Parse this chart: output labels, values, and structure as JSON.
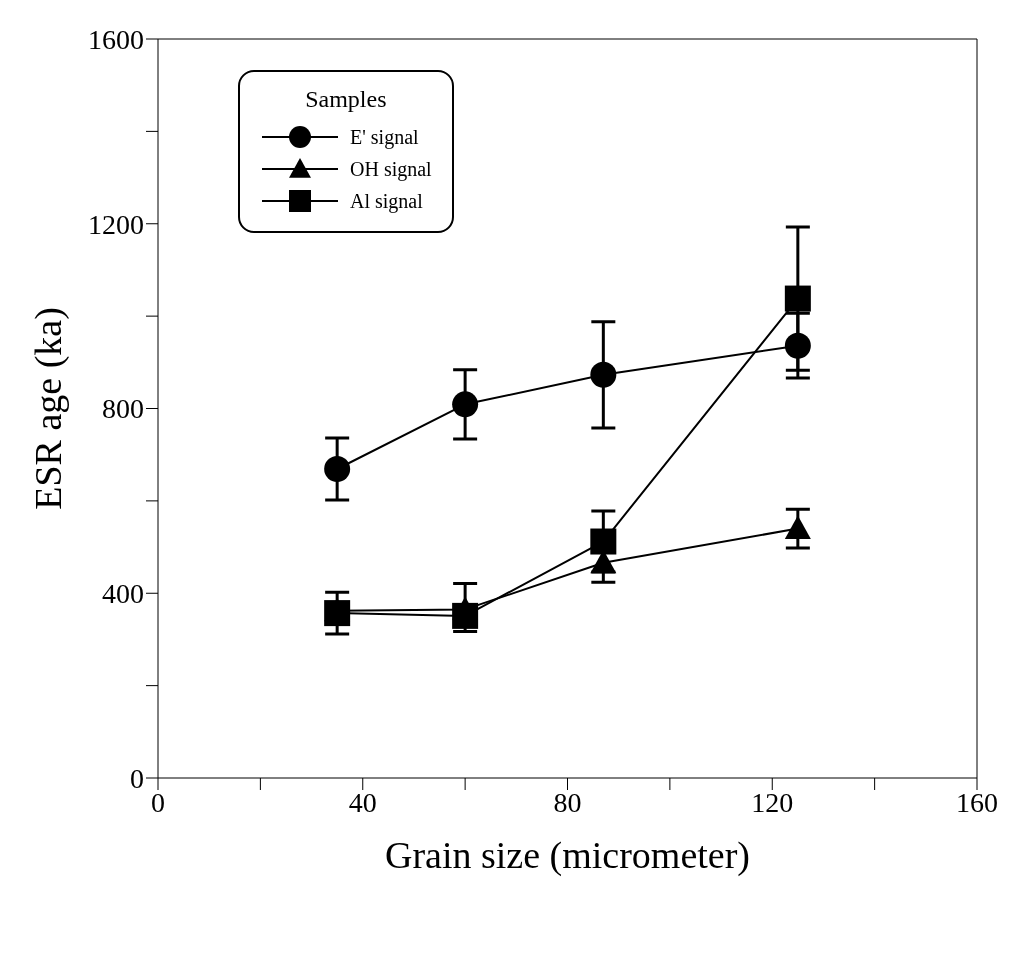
{
  "chart_data": {
    "type": "line",
    "xlabel": "Grain size (micrometer)",
    "ylabel": "ESR age (ka)",
    "legend_title": "Samples",
    "legend": "top left",
    "grid": false,
    "xlim": [
      0,
      160
    ],
    "xticks": [
      0,
      {
        "value": 20,
        "label": null
      },
      40,
      {
        "value": 60,
        "label": null
      },
      80,
      {
        "value": 100,
        "label": null
      },
      120,
      {
        "value": 140,
        "label": null
      },
      160
    ],
    "ylim": [
      0,
      1600
    ],
    "yticks": [
      0,
      {
        "value": 200,
        "label": null
      },
      400,
      {
        "value": 600,
        "label": null
      },
      800,
      {
        "value": 1000,
        "label": null
      },
      1200,
      {
        "value": 1400,
        "label": null
      },
      1600
    ],
    "x": [
      35,
      60,
      87,
      125
    ],
    "series": [
      {
        "name": "E' signal",
        "color": "#000000",
        "marker": "circle",
        "values": [
          669,
          809,
          873,
          936
        ],
        "errors": [
          67,
          75,
          115,
          70
        ]
      },
      {
        "name": "OH signal",
        "color": "#000000",
        "marker": "triangle",
        "values": [
          362,
          365,
          466,
          540
        ],
        "errors": [
          null,
          null,
          42,
          42
        ]
      },
      {
        "name": "Al signal",
        "color": "#000000",
        "marker": "square",
        "values": [
          357,
          351,
          512,
          1038
        ],
        "errors": [
          45,
          [
            317,
            421
          ],
          66,
          155
        ]
      }
    ]
  }
}
